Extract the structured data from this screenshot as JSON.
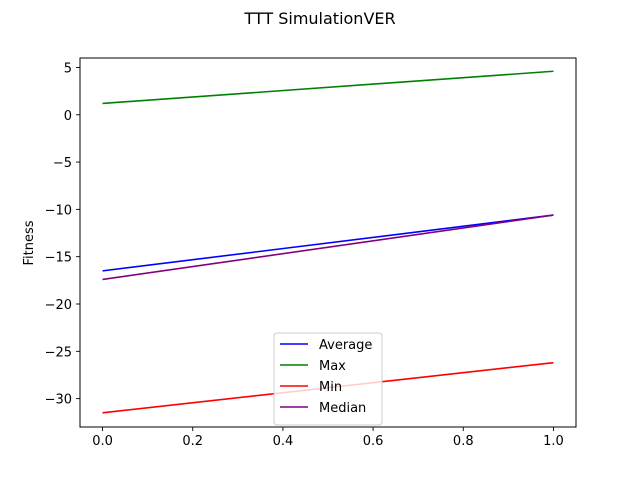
{
  "chart_data": {
    "type": "line",
    "title": "TTT SimulationVER",
    "xlabel": "",
    "ylabel": "Fitness",
    "xlim": [
      -0.05,
      1.05
    ],
    "ylim": [
      -33.0,
      6.0
    ],
    "x": [
      0,
      1
    ],
    "xticks": [
      0.0,
      0.2,
      0.4,
      0.6,
      0.8,
      1.0
    ],
    "xtick_labels": [
      "0.0",
      "0.2",
      "0.4",
      "0.6",
      "0.8",
      "1.0"
    ],
    "yticks": [
      5,
      0,
      -5,
      -10,
      -15,
      -20,
      -25,
      -30
    ],
    "ytick_labels": [
      "5",
      "0",
      "−5",
      "−10",
      "−15",
      "−20",
      "−25",
      "−30"
    ],
    "grid": false,
    "legend_position": "lower-center",
    "series": [
      {
        "name": "Average",
        "color": "#0000ff",
        "values": [
          -16.5,
          -10.6
        ]
      },
      {
        "name": "Max",
        "color": "#008000",
        "values": [
          1.2,
          4.6
        ]
      },
      {
        "name": "Min",
        "color": "#ff0000",
        "values": [
          -31.5,
          -26.2
        ]
      },
      {
        "name": "Median",
        "color": "#800080",
        "values": [
          -17.4,
          -10.6
        ]
      }
    ]
  }
}
